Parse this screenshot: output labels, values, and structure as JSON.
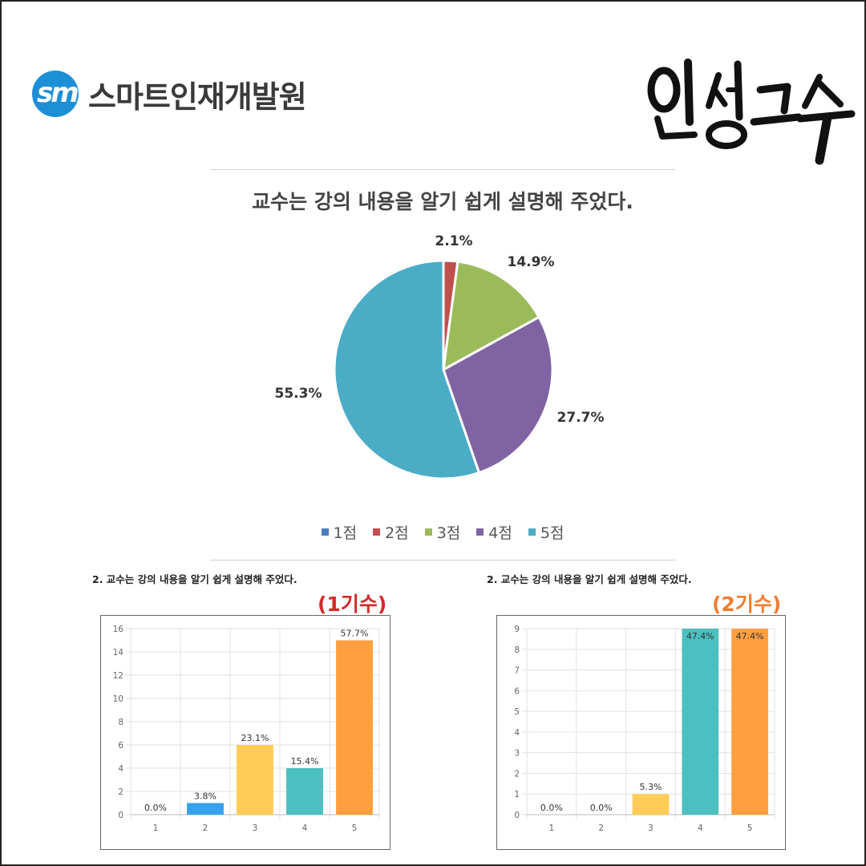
{
  "brand": {
    "logo_mark": "sm",
    "logo_text": "스마트인재개발원",
    "brush_text": "인생고수"
  },
  "main_chart": {
    "title": "교수는 강의 내용을 알기 쉽게 설명해 주었다."
  },
  "chart_data": [
    {
      "type": "pie",
      "title": "교수는 강의 내용을 알기 쉽게 설명해 주었다.",
      "slices": [
        {
          "label": "1점",
          "value": 0.0,
          "color": "#4a7ebb"
        },
        {
          "label": "2점",
          "value": 2.1,
          "color": "#c0504d"
        },
        {
          "label": "3점",
          "value": 14.9,
          "color": "#9bbb59"
        },
        {
          "label": "4점",
          "value": 27.7,
          "color": "#8064a2"
        },
        {
          "label": "5점",
          "value": 55.3,
          "color": "#4bacc6"
        }
      ],
      "data_labels": [
        "2.1%",
        "14.9%",
        "27.7%",
        "55.3%"
      ],
      "legend": "bottom"
    },
    {
      "type": "bar",
      "title": "2. 교수는 강의 내용을 알기 쉽게 설명해 주었다.",
      "cohort_label": "(1기수)",
      "cohort_color": "#d42a2a",
      "categories": [
        "1",
        "2",
        "3",
        "4",
        "5"
      ],
      "values": [
        0,
        1,
        6,
        4,
        15
      ],
      "data_labels": [
        "0.0%",
        "3.8%",
        "23.1%",
        "15.4%",
        "57.7%"
      ],
      "colors": [
        "#36a2eb",
        "#36a2eb",
        "#ffcd56",
        "#4bc0c0",
        "#ff9f40"
      ],
      "ylim": [
        0,
        16
      ],
      "yticks": [
        "0",
        "2",
        "4",
        "6",
        "8",
        "10",
        "12",
        "14",
        "16"
      ],
      "grid": true
    },
    {
      "type": "bar",
      "title": "2. 교수는 강의 내용을 알기 쉽게 설명해 주었다.",
      "cohort_label": "(2기수)",
      "cohort_color": "#ee7d31",
      "categories": [
        "1",
        "2",
        "3",
        "4",
        "5"
      ],
      "values": [
        0,
        0,
        1,
        9,
        9
      ],
      "data_labels": [
        "0.0%",
        "0.0%",
        "5.3%",
        "47.4%",
        "47.4%"
      ],
      "colors": [
        "#36a2eb",
        "#36a2eb",
        "#ffcd56",
        "#4bc0c0",
        "#ff9f40"
      ],
      "ylim": [
        0,
        9
      ],
      "yticks": [
        "0",
        "1",
        "2",
        "3",
        "4",
        "5",
        "6",
        "7",
        "8",
        "9"
      ],
      "grid": true
    }
  ]
}
